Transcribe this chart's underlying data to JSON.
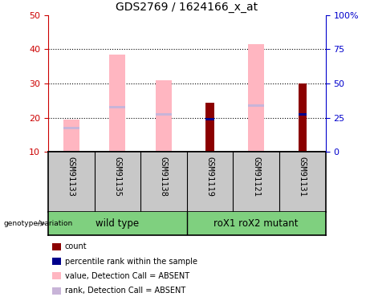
{
  "title": "GDS2769 / 1624166_x_at",
  "samples": [
    "GSM91133",
    "GSM91135",
    "GSM91138",
    "GSM91119",
    "GSM91121",
    "GSM91131"
  ],
  "pink_bar_values": [
    19.5,
    38.5,
    31.0,
    null,
    41.5,
    null
  ],
  "pink_rank_values": [
    17.0,
    23.0,
    21.0,
    null,
    23.5,
    null
  ],
  "red_bar_values": [
    null,
    null,
    null,
    24.5,
    null,
    30.0
  ],
  "blue_rank_values": [
    null,
    null,
    null,
    19.5,
    null,
    21.0
  ],
  "ylim_left": [
    10,
    50
  ],
  "ylim_right": [
    0,
    100
  ],
  "yticks_left": [
    10,
    20,
    30,
    40,
    50
  ],
  "yticks_right": [
    0,
    25,
    50,
    75,
    100
  ],
  "ytick_labels_right": [
    "0",
    "25",
    "50",
    "75",
    "100%"
  ],
  "left_axis_color": "#CC0000",
  "right_axis_color": "#0000CC",
  "pink_color": "#FFB6C1",
  "rank_absent_color": "#C8B4D8",
  "red_color": "#8B0000",
  "blue_color": "#00008B",
  "sample_bg_color": "#C8C8C8",
  "group_bg_color": "#7FD07F",
  "legend_items": [
    {
      "label": "count",
      "color": "#8B0000"
    },
    {
      "label": "percentile rank within the sample",
      "color": "#00008B"
    },
    {
      "label": "value, Detection Call = ABSENT",
      "color": "#FFB6C1"
    },
    {
      "label": "rank, Detection Call = ABSENT",
      "color": "#C8B4D8"
    }
  ]
}
